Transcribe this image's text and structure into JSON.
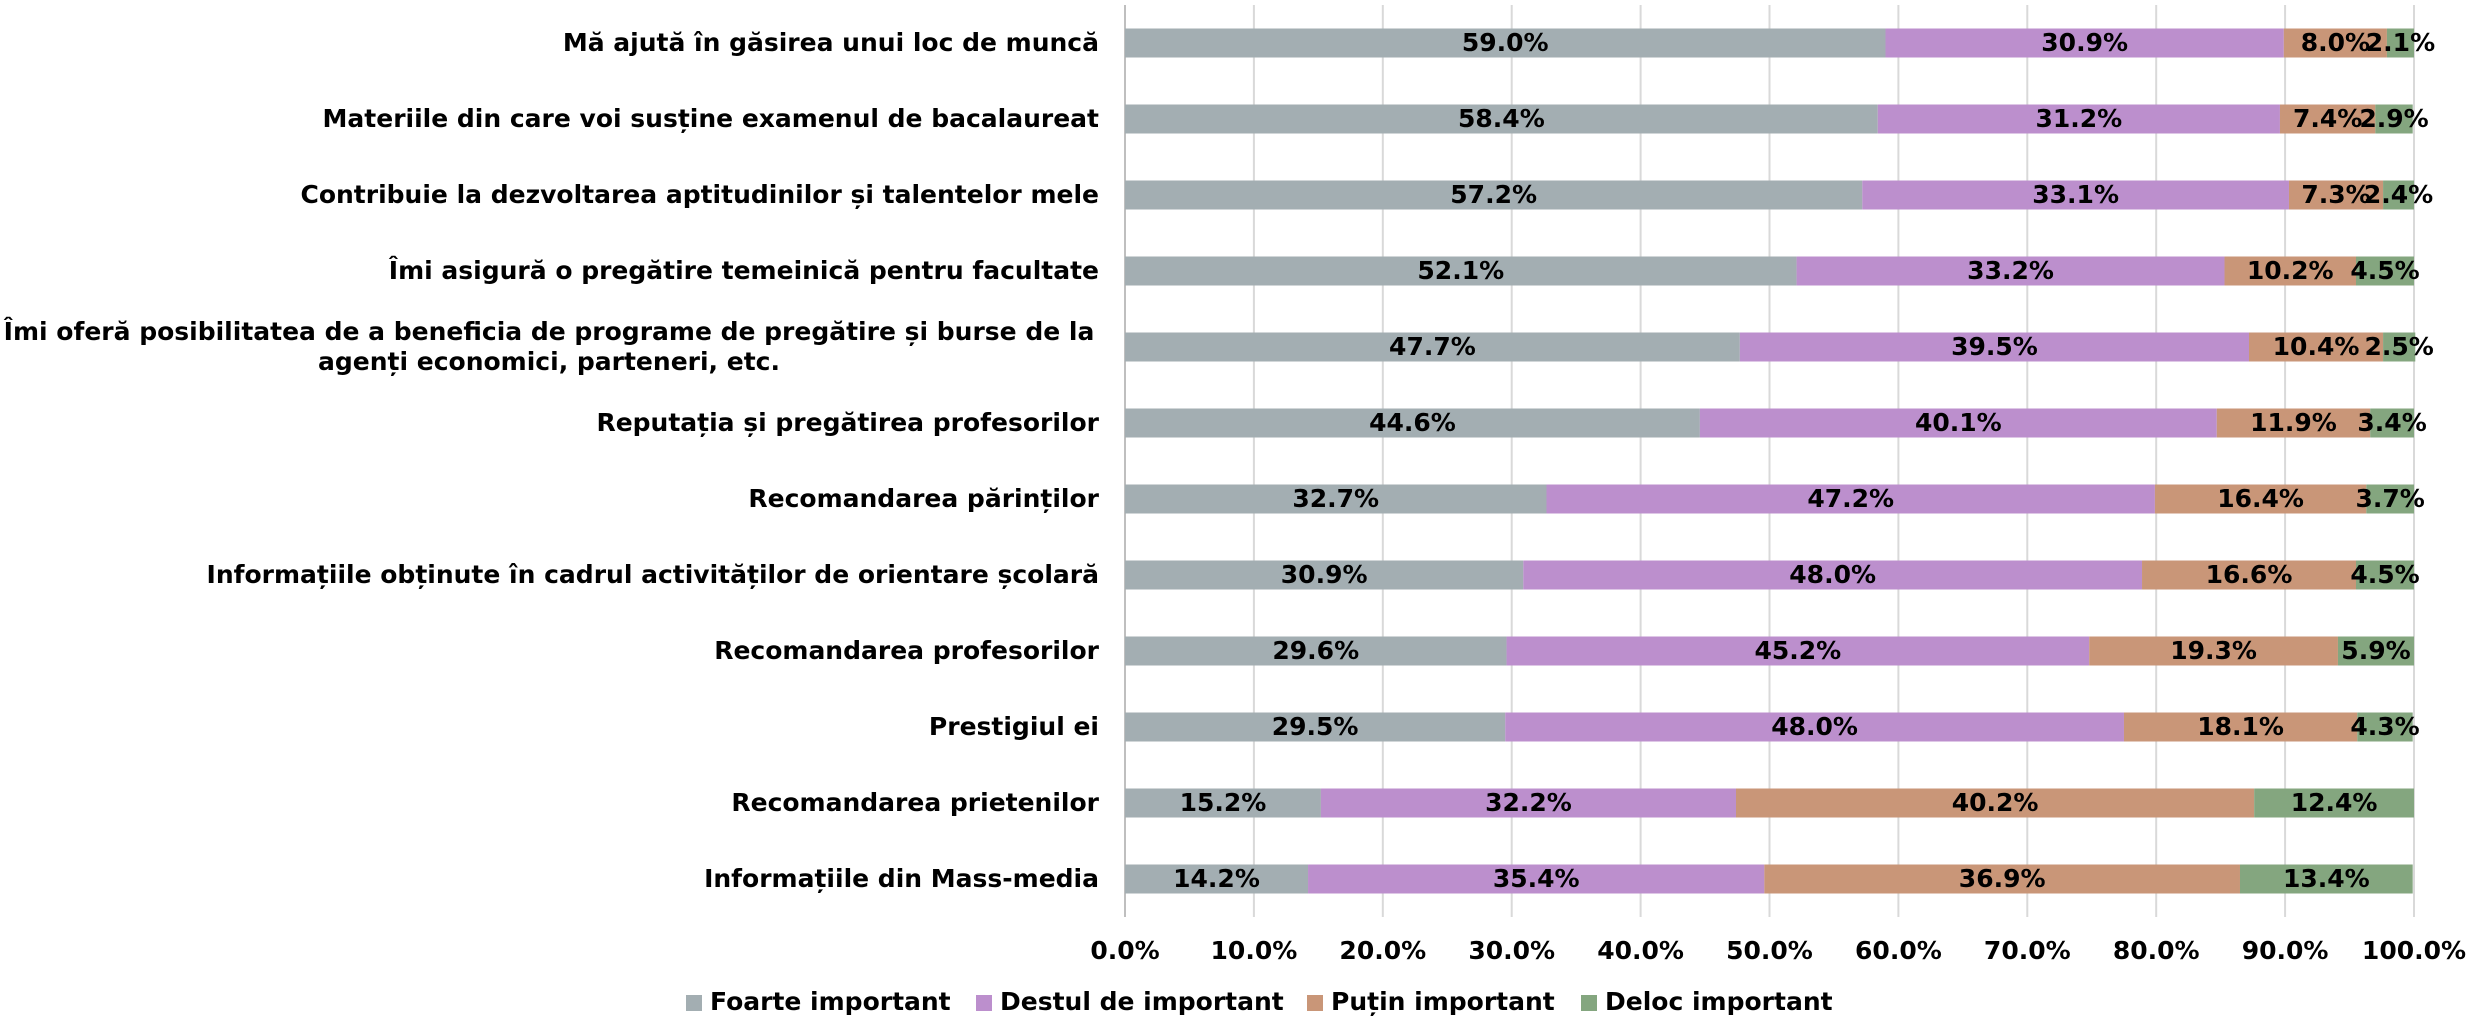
{
  "chart_data": {
    "type": "bar",
    "orientation": "horizontal",
    "stacked": true,
    "categories": [
      "Mă ajută în găsirea unui loc de muncă",
      "Materiile din care voi susține examenul de bacalaureat",
      "Contribuie la dezvoltarea aptitudinilor și talentelor mele",
      "Îmi asigură o pregătire temeinică pentru facultate",
      "Îmi oferă posibilitatea de a beneficia de programe de pregătire și burse de la agenți economici, parteneri, etc.",
      "Reputația și pregătirea profesorilor",
      "Recomandarea părinților",
      "Informațiile obținute în cadrul activităților de orientare școlară",
      "Recomandarea profesorilor",
      "Prestigiul ei",
      "Recomandarea prietenilor",
      "Informațiile din Mass-media"
    ],
    "series": [
      {
        "name": "Foarte important",
        "color": "#a3aeb2",
        "values": [
          59.0,
          58.4,
          57.2,
          52.1,
          47.7,
          44.6,
          32.7,
          30.9,
          29.6,
          29.5,
          15.2,
          14.2
        ],
        "value_labels": [
          "59.0%",
          "58.4%",
          "57.2%",
          "52.1%",
          "47.7%",
          "44.6%",
          "32.7%",
          "30.9%",
          "29.6%",
          "29.5%",
          "15.2%",
          "14.2%"
        ]
      },
      {
        "name": "Destul de important",
        "color": "#bc8fcd",
        "values": [
          30.9,
          31.2,
          33.1,
          33.2,
          39.5,
          40.1,
          47.2,
          48.0,
          45.2,
          48.0,
          32.2,
          35.4
        ],
        "value_labels": [
          "30.9%",
          "31.2%",
          "33.1%",
          "33.2%",
          "39.5%",
          "40.1%",
          "47.2%",
          "48.0%",
          "45.2%",
          "48.0%",
          "32.2%",
          "35.4%"
        ]
      },
      {
        "name": "Puțin important",
        "color": "#c99678",
        "values": [
          8.0,
          7.4,
          7.3,
          10.2,
          10.4,
          11.9,
          16.4,
          16.6,
          19.3,
          18.1,
          40.2,
          36.9
        ],
        "value_labels": [
          "8.0%",
          "7.4%",
          "7.3%",
          "10.2%",
          "10.4%",
          "11.9%",
          "16.4%",
          "16.6%",
          "19.3%",
          "18.1%",
          "40.2%",
          "36.9%"
        ]
      },
      {
        "name": "Deloc important",
        "color": "#84a67f",
        "values": [
          2.1,
          2.9,
          2.4,
          4.5,
          2.5,
          3.4,
          3.7,
          4.5,
          5.9,
          4.3,
          12.4,
          13.4
        ],
        "value_labels": [
          "2.1%",
          "2.9%",
          "2.4%",
          "4.5%",
          "2.5%",
          "3.4%",
          "3.7%",
          "4.5%",
          "5.9%",
          "4.3%",
          "12.4%",
          "13.4%"
        ]
      }
    ],
    "xlim": [
      0,
      100
    ],
    "xticks": [
      {
        "value": 0,
        "label": "0.0%"
      },
      {
        "value": 10,
        "label": "10.0%"
      },
      {
        "value": 20,
        "label": "20.0%"
      },
      {
        "value": 30,
        "label": "30.0%"
      },
      {
        "value": 40,
        "label": "40.0%"
      },
      {
        "value": 50,
        "label": "50.0%"
      },
      {
        "value": 60,
        "label": "60.0%"
      },
      {
        "value": 70,
        "label": "70.0%"
      },
      {
        "value": 80,
        "label": "80.0%"
      },
      {
        "value": 90,
        "label": "90.0%"
      },
      {
        "value": 100,
        "label": "100.0%"
      }
    ],
    "grid": true,
    "legend": "bottom"
  }
}
